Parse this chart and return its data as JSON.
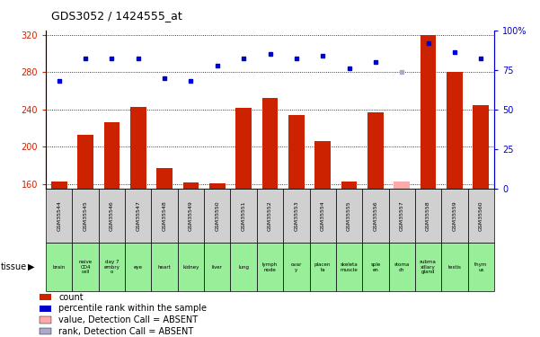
{
  "title": "GDS3052 / 1424555_at",
  "samples": [
    "GSM35544",
    "GSM35545",
    "GSM35546",
    "GSM35547",
    "GSM35548",
    "GSM35549",
    "GSM35550",
    "GSM35551",
    "GSM35552",
    "GSM35553",
    "GSM35554",
    "GSM35555",
    "GSM35556",
    "GSM35557",
    "GSM35558",
    "GSM35559",
    "GSM35560"
  ],
  "tissues": [
    "brain",
    "naive\nCD4\ncell",
    "day 7\nembry\no",
    "eye",
    "heart",
    "kidney",
    "liver",
    "lung",
    "lymph\nnode",
    "ovar\ny",
    "placen\nta",
    "skeleta\nmuscle",
    "sple\nen",
    "stoma\nch",
    "subma\nxillary\ngland",
    "testis",
    "thym\nus"
  ],
  "bar_heights": [
    163,
    213,
    226,
    243,
    177,
    162,
    161,
    242,
    252,
    234,
    206,
    163,
    237,
    163,
    320,
    280,
    245
  ],
  "bar_absent": [
    false,
    false,
    false,
    false,
    false,
    false,
    false,
    false,
    false,
    false,
    false,
    false,
    false,
    true,
    false,
    false,
    false
  ],
  "dot_values": [
    68,
    82,
    82,
    82,
    70,
    68,
    78,
    82,
    85,
    82,
    84,
    76,
    80,
    74,
    92,
    86,
    82
  ],
  "dot_absent": [
    false,
    false,
    false,
    false,
    false,
    false,
    false,
    false,
    false,
    false,
    false,
    false,
    false,
    true,
    false,
    false,
    false
  ],
  "ylim_left": [
    155,
    325
  ],
  "ylim_right": [
    0,
    100
  ],
  "yticks_left": [
    160,
    200,
    240,
    280,
    320
  ],
  "yticks_right": [
    0,
    25,
    50,
    75,
    100
  ],
  "bar_color": "#cc2200",
  "bar_absent_color": "#ffaaaa",
  "dot_color": "#0000cc",
  "dot_absent_color": "#aaaacc",
  "sample_box_color": "#d0d0d0",
  "tissue_box_color": "#99ee99",
  "legend_items": [
    "count",
    "percentile rank within the sample",
    "value, Detection Call = ABSENT",
    "rank, Detection Call = ABSENT"
  ],
  "legend_colors": [
    "#cc2200",
    "#0000cc",
    "#ffaaaa",
    "#aaaacc"
  ]
}
